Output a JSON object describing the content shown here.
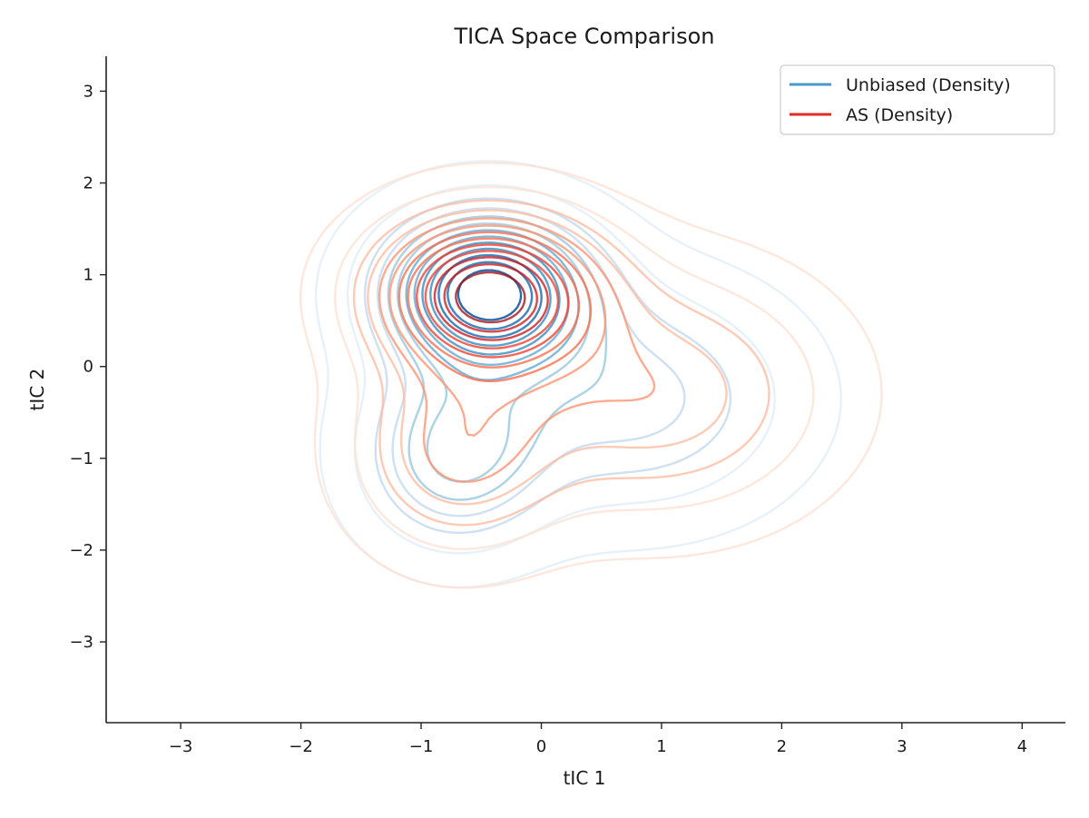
{
  "chart_data": {
    "type": "contour",
    "title": "TICA Space Comparison",
    "xlabel": "tIC 1",
    "ylabel": "tIC 2",
    "xlim": [
      -3.62,
      4.36
    ],
    "ylim": [
      -3.88,
      3.38
    ],
    "xticks": [
      -3,
      -2,
      -1,
      0,
      1,
      2,
      3,
      4
    ],
    "yticks": [
      -3,
      -2,
      -1,
      0,
      1,
      2,
      3
    ],
    "grid": false,
    "legend_position": "top-right",
    "series": [
      {
        "name": "Unbiased (Density)",
        "legend_color": "#4a98c9",
        "palette": [
          "#e3eef8",
          "#c6dbef",
          "#9ecae1",
          "#6baed6",
          "#4292c6",
          "#2171b5",
          "#08519c"
        ],
        "levels": 13,
        "components": [
          {
            "cx": -0.45,
            "cy": 0.82,
            "sx": 0.55,
            "sy": 0.55,
            "w": 1.0
          },
          {
            "cx": -0.72,
            "cy": -0.95,
            "sx": 0.5,
            "sy": 0.65,
            "w": 0.42
          },
          {
            "cx": 0.75,
            "cy": -0.35,
            "sx": 0.85,
            "sy": 0.8,
            "w": 0.3
          }
        ]
      },
      {
        "name": "AS (Density)",
        "legend_color": "#de2d26",
        "palette": [
          "#fee0d2",
          "#fcbba1",
          "#fc9272",
          "#fb6a4a",
          "#ef3b2c",
          "#cb181d",
          "#a50f15"
        ],
        "levels": 13,
        "components": [
          {
            "cx": -0.45,
            "cy": 0.8,
            "sx": 0.6,
            "sy": 0.55,
            "w": 1.0
          },
          {
            "cx": -0.7,
            "cy": -0.9,
            "sx": 0.55,
            "sy": 0.7,
            "w": 0.35
          },
          {
            "cx": 0.95,
            "cy": -0.3,
            "sx": 0.9,
            "sy": 0.85,
            "w": 0.33
          }
        ]
      }
    ]
  }
}
